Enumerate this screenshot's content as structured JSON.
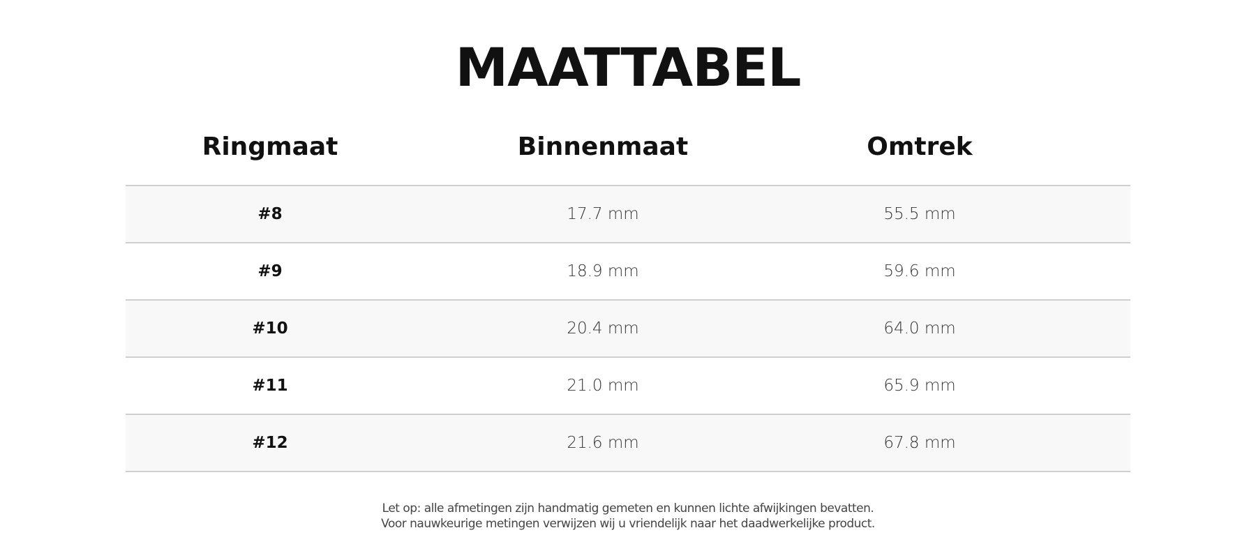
{
  "header": {
    "title": "MAATTABEL"
  },
  "table": {
    "columns": [
      "Ringmaat",
      "Binnenmaat",
      "Omtrek"
    ],
    "rows": [
      [
        "#8",
        "17.7 mm",
        "55.5 mm"
      ],
      [
        "#9",
        "18.9 mm",
        "59.6 mm"
      ],
      [
        "#10",
        "20.4 mm",
        "64.0 mm"
      ],
      [
        "#11",
        "21.0 mm",
        "65.9 mm"
      ],
      [
        "#12",
        "21.6 mm",
        "67.8 mm"
      ]
    ]
  },
  "note": {
    "lines": [
      "Let op: alle afmetingen zijn handmatig gemeten en kunnen lichte afwijkingen bevatten.",
      "Voor nauwkeurige metingen verwijzen wij u vriendelijk naar het daadwerkelijke product."
    ]
  }
}
